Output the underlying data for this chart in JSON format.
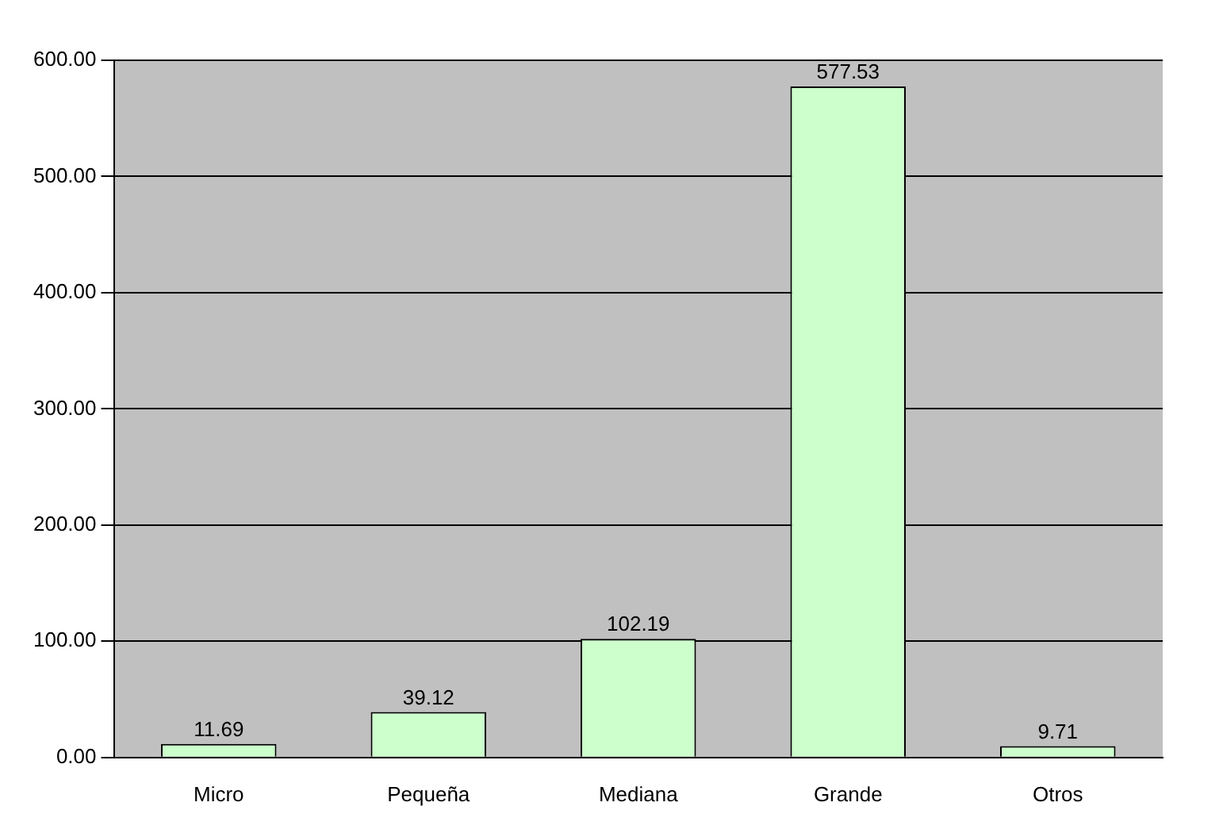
{
  "chart_data": {
    "type": "bar",
    "categories": [
      "Micro",
      "Pequeña",
      "Mediana",
      "Grande",
      "Otros"
    ],
    "values": [
      11.69,
      39.12,
      102.19,
      577.53,
      9.71
    ],
    "color": "#ccffcc",
    "ylim": [
      0,
      600
    ],
    "yticks": [
      {
        "value": 0,
        "label": "0.00"
      },
      {
        "value": 100,
        "label": "100.00"
      },
      {
        "value": 200,
        "label": "200.00"
      },
      {
        "value": 300,
        "label": "300.00"
      },
      {
        "value": 400,
        "label": "400.00"
      },
      {
        "value": 500,
        "label": "500.00"
      },
      {
        "value": 600,
        "label": "600.00"
      }
    ],
    "grid": "y",
    "legend": false,
    "data_labels": true
  }
}
